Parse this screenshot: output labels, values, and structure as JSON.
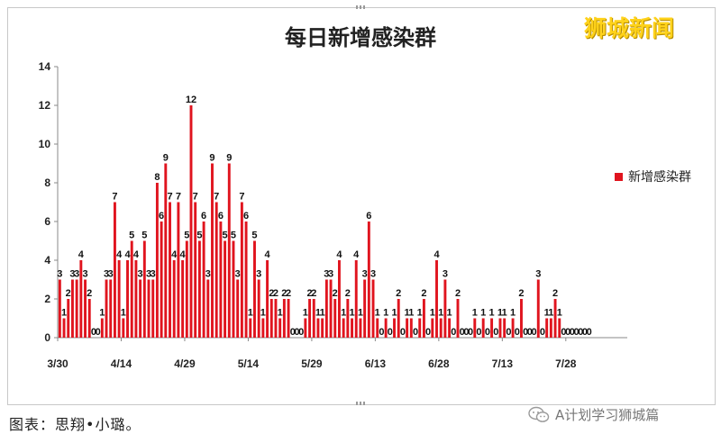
{
  "watermark": "狮城新闻",
  "caption": "图表：思翔•小璐。",
  "footer_brand": "A计划学习狮城篇",
  "colors": {
    "bar": "#e0141e",
    "axis": "#888888",
    "grid": "#dddddd"
  },
  "chart_data": {
    "type": "bar",
    "title": "每日新增感染群",
    "xlabel": "",
    "ylabel": "",
    "ylim": [
      0,
      14
    ],
    "yticks": [
      0,
      2,
      4,
      6,
      8,
      10,
      12,
      14
    ],
    "x_tick_labels": [
      {
        "index": 0,
        "label": "3/30"
      },
      {
        "index": 15,
        "label": "4/14"
      },
      {
        "index": 30,
        "label": "4/29"
      },
      {
        "index": 45,
        "label": "5/14"
      },
      {
        "index": 60,
        "label": "5/29"
      },
      {
        "index": 75,
        "label": "6/13"
      },
      {
        "index": 90,
        "label": "6/28"
      },
      {
        "index": 105,
        "label": "7/13"
      },
      {
        "index": 120,
        "label": "7/28"
      }
    ],
    "grid": false,
    "legend": "right",
    "series": [
      {
        "name": "新增感染群",
        "values": [
          3,
          1,
          2,
          3,
          3,
          4,
          3,
          2,
          0,
          0,
          1,
          3,
          3,
          7,
          4,
          1,
          4,
          5,
          4,
          3,
          5,
          3,
          3,
          8,
          6,
          9,
          7,
          4,
          7,
          4,
          5,
          12,
          7,
          5,
          6,
          3,
          9,
          7,
          6,
          5,
          9,
          5,
          3,
          7,
          6,
          1,
          5,
          3,
          1,
          4,
          2,
          2,
          1,
          2,
          2,
          0,
          0,
          0,
          1,
          2,
          2,
          1,
          1,
          3,
          3,
          2,
          4,
          1,
          2,
          1,
          4,
          1,
          3,
          6,
          3,
          1,
          0,
          1,
          0,
          1,
          2,
          0,
          1,
          1,
          0,
          1,
          2,
          0,
          1,
          4,
          1,
          3,
          1,
          0,
          2,
          0,
          0,
          0,
          1,
          0,
          1,
          0,
          1,
          0,
          1,
          1,
          0,
          1,
          0,
          2,
          0,
          0,
          0,
          3,
          0,
          1,
          1,
          2,
          1,
          0,
          0,
          0,
          0,
          0,
          0,
          0
        ]
      }
    ]
  }
}
